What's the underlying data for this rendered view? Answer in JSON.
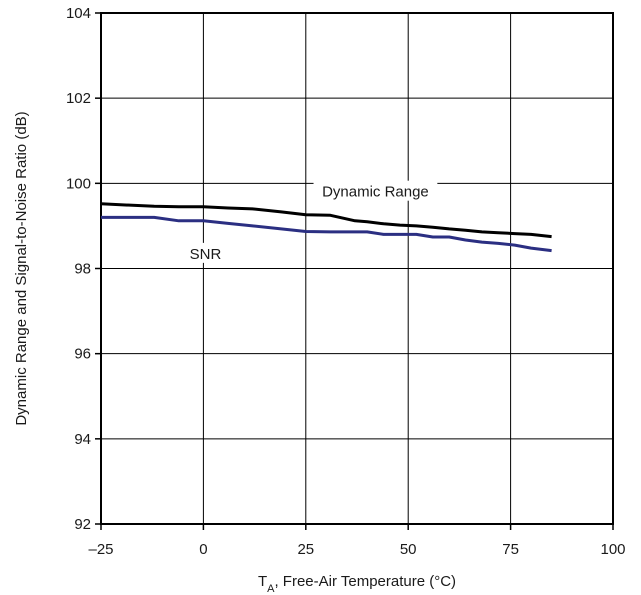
{
  "chart_data": {
    "type": "line",
    "xlabel_main": "T",
    "xlabel_sub": "A",
    "xlabel_rest": ", Free-Air Temperature (°C)",
    "ylabel": "Dynamic Range and Signal-to-Noise Ratio (dB)",
    "xlim": [
      -25,
      100
    ],
    "ylim": [
      92,
      104
    ],
    "xticks": [
      -25,
      0,
      25,
      50,
      75,
      100
    ],
    "xtick_labels": [
      "–25",
      "0",
      "25",
      "50",
      "75",
      "100"
    ],
    "yticks": [
      92,
      94,
      96,
      98,
      100,
      102,
      104
    ],
    "ytick_labels": [
      "92",
      "94",
      "96",
      "98",
      "100",
      "102",
      "104"
    ],
    "grid": true,
    "series": [
      {
        "name": "Dynamic Range",
        "color": "#000000",
        "x": [
          -25,
          -12,
          -6,
          0,
          6,
          12,
          19,
          25,
          31,
          37,
          40,
          44,
          48,
          52,
          56,
          60,
          64,
          68,
          72,
          76,
          80,
          85
        ],
        "y": [
          99.52,
          99.46,
          99.45,
          99.45,
          99.42,
          99.4,
          99.33,
          99.26,
          99.25,
          99.12,
          99.1,
          99.05,
          99.02,
          99.0,
          98.97,
          98.93,
          98.9,
          98.86,
          98.84,
          98.82,
          98.8,
          98.75
        ]
      },
      {
        "name": "SNR",
        "color": "#2b2f82",
        "x": [
          -25,
          -12,
          -6,
          0,
          6,
          12,
          19,
          25,
          31,
          37,
          40,
          44,
          48,
          52,
          56,
          60,
          64,
          68,
          72,
          76,
          80,
          85
        ],
        "y": [
          99.2,
          99.2,
          99.12,
          99.12,
          99.06,
          99.0,
          98.93,
          98.87,
          98.86,
          98.86,
          98.86,
          98.8,
          98.8,
          98.8,
          98.74,
          98.74,
          98.67,
          98.62,
          98.59,
          98.55,
          98.48,
          98.42
        ]
      }
    ],
    "annotations": [
      {
        "text": "Dynamic Range",
        "x": 42,
        "y": 99.78
      },
      {
        "text": "SNR",
        "x": 0.5,
        "y": 98.32
      }
    ]
  }
}
